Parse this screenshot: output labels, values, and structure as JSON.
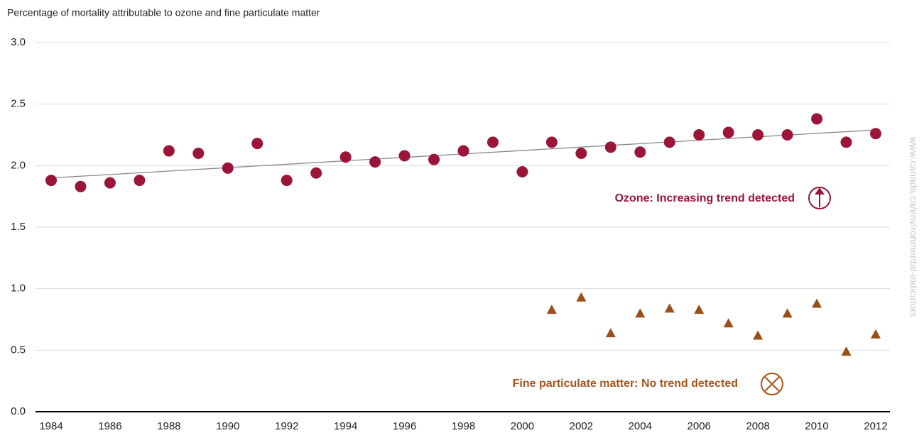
{
  "chart_data": {
    "type": "scatter",
    "title": "Percentage of mortality attributable to ozone and fine particulate matter",
    "xlim": [
      1984,
      2012
    ],
    "xticks": [
      1984,
      1986,
      1988,
      1990,
      1992,
      1994,
      1996,
      1998,
      2000,
      2002,
      2004,
      2006,
      2008,
      2010,
      2012
    ],
    "ylim": [
      0,
      3
    ],
    "yticks": [
      {
        "value": 0,
        "label": "0.0"
      },
      0.5,
      {
        "value": 1,
        "label": "1.0"
      },
      1.5,
      {
        "value": 2,
        "label": "2.0"
      },
      2.5,
      {
        "value": 3,
        "label": "3.0"
      }
    ],
    "grid": true,
    "series": [
      {
        "marker": "circle",
        "color": "#9b1538",
        "x": [
          1984,
          1985,
          1986,
          1987,
          1988,
          1989,
          1990,
          1991,
          1992,
          1993,
          1994,
          1995,
          1996,
          1997,
          1998,
          1999,
          2000,
          2001,
          2002,
          2003,
          2004,
          2005,
          2006,
          2007,
          2008,
          2009,
          2010,
          2011,
          2012
        ],
        "values": [
          1.88,
          1.83,
          1.86,
          1.88,
          2.12,
          2.1,
          1.98,
          2.18,
          1.88,
          1.94,
          2.07,
          2.03,
          2.08,
          2.05,
          2.12,
          2.19,
          1.95,
          2.19,
          2.1,
          2.15,
          2.11,
          2.19,
          2.25,
          2.27,
          2.25,
          2.25,
          2.38,
          2.19,
          2.26
        ]
      },
      {
        "marker": "triangle",
        "color": "#9a4f1a",
        "x": [
          2001,
          2002,
          2003,
          2004,
          2005,
          2006,
          2007,
          2008,
          2009,
          2010,
          2011,
          2012
        ],
        "values": [
          0.83,
          0.93,
          0.64,
          0.8,
          0.84,
          0.83,
          0.72,
          0.62,
          0.8,
          0.88,
          0.49,
          0.63
        ]
      }
    ],
    "trend_line": {
      "color": "#888888",
      "x": [
        1984,
        2012
      ],
      "values": [
        1.9,
        2.29
      ]
    },
    "annotations": [
      {
        "text": "Ozone: Increasing trend detected",
        "color": "#9b1538"
      },
      {
        "text": "Fine particulate matter: No trend detected",
        "color": "#a5541c"
      }
    ],
    "source": "www.canada.ca/environmental-indicators"
  }
}
